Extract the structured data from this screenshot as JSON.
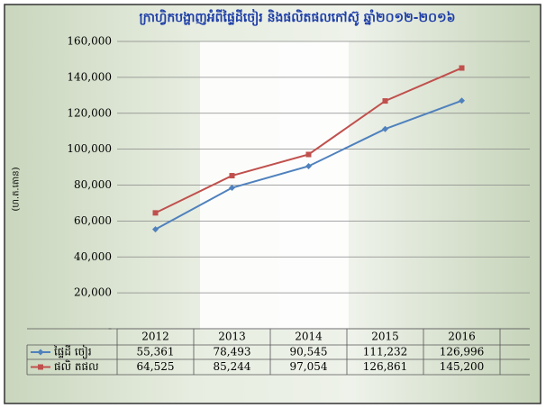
{
  "chart_data": {
    "type": "line",
    "title": "ក្រាហ្វិកបង្ហាញអំពីផ្ទៃដីចៀរ និងផលិតផលកៅស៊ូ ឆ្នាំ២០១២-២០១៦",
    "y_label": "(ហ.ត.តោន)",
    "categories": [
      "2012",
      "2013",
      "2014",
      "2015",
      "2016"
    ],
    "series": [
      {
        "name": "ផ្ទៃដី ចៀរ",
        "color": "#4f81bd",
        "values": [
          55361,
          78493,
          90545,
          111232,
          126996
        ],
        "value_labels": [
          "55,361",
          "78,493",
          "90,545",
          "111,232",
          "126,996"
        ]
      },
      {
        "name": "ផលិ តផល",
        "color": "#c0504d",
        "values": [
          64525,
          85244,
          97054,
          126861,
          145200
        ],
        "value_labels": [
          "64,525",
          "85,244",
          "97,054",
          "126,861",
          "145,200"
        ]
      }
    ],
    "ylim": [
      0,
      160000
    ],
    "yticks": [
      {
        "value": 0,
        "label": "-"
      },
      {
        "value": 20000,
        "label": "20,000"
      },
      {
        "value": 40000,
        "label": "40,000"
      },
      {
        "value": 60000,
        "label": "60,000"
      },
      {
        "value": 80000,
        "label": "80,000"
      },
      {
        "value": 100000,
        "label": "100,000"
      },
      {
        "value": 120000,
        "label": "120,000"
      },
      {
        "value": 140000,
        "label": "140,000"
      },
      {
        "value": 160000,
        "label": "160,000"
      }
    ],
    "grid": true
  }
}
